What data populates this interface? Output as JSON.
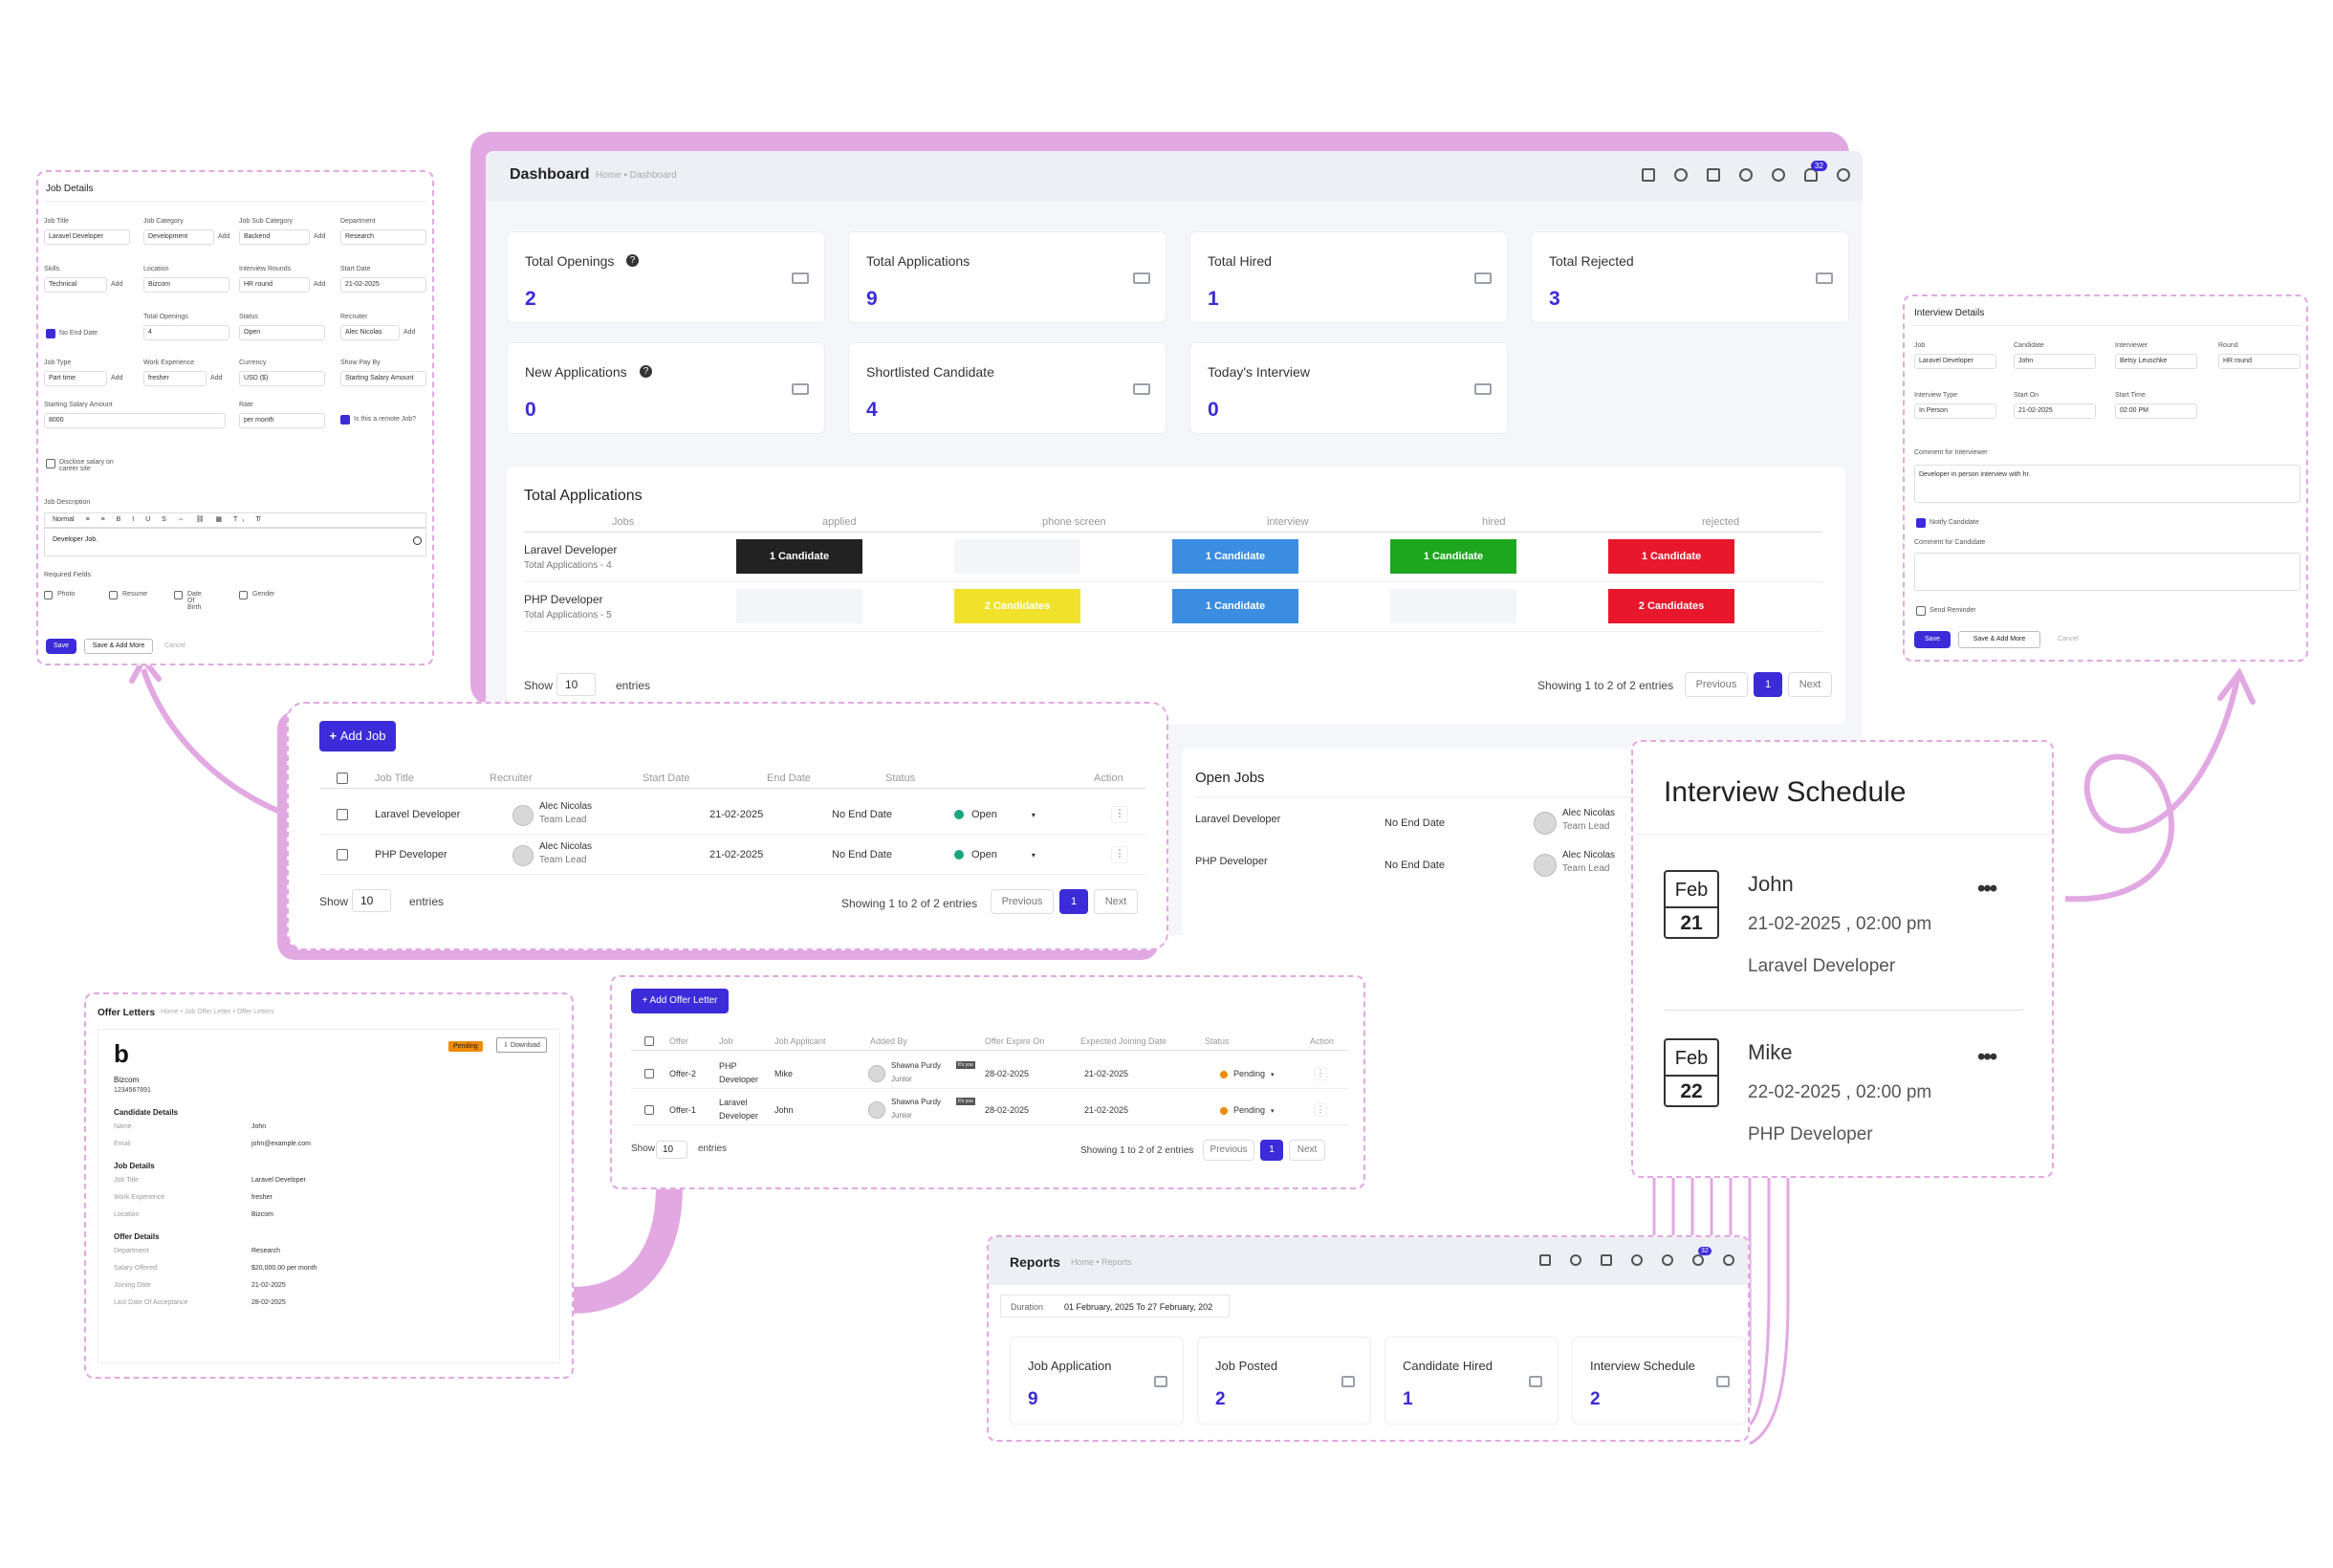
{
  "dashboard": {
    "title": "Dashboard",
    "breadcrumb": "Home • Dashboard",
    "notif_count": "32",
    "stats": [
      {
        "label": "Total Openings",
        "value": "2",
        "help": true
      },
      {
        "label": "Total Applications",
        "value": "9",
        "help": false
      },
      {
        "label": "Total Hired",
        "value": "1",
        "help": false
      },
      {
        "label": "Total Rejected",
        "value": "3",
        "help": false
      },
      {
        "label": "New Applications",
        "value": "0",
        "help": true
      },
      {
        "label": "Shortlisted Candidate",
        "value": "4",
        "help": false
      },
      {
        "label": "Today's Interview",
        "value": "0",
        "help": false
      }
    ],
    "applications": {
      "title": "Total Applications",
      "headers": [
        "Jobs",
        "applied",
        "phone screen",
        "interview",
        "hired",
        "rejected"
      ],
      "rows": [
        {
          "job": "Laravel Developer",
          "sub": "Total Applications - 4",
          "cells": [
            "1 Candidate",
            "",
            "1 Candidate",
            "1 Candidate",
            "1 Candidate"
          ]
        },
        {
          "job": "PHP Developer",
          "sub": "Total Applications - 5",
          "cells": [
            "",
            "2 Candidates",
            "1 Candidate",
            "",
            "2 Candidates"
          ]
        }
      ],
      "show": "Show",
      "entries_val": "10",
      "entries": "entries",
      "showing": "Showing 1 to 2 of 2 entries",
      "prev": "Previous",
      "page": "1",
      "next": "Next"
    }
  },
  "jobs_table": {
    "add_btn": "Add Job",
    "headers": [
      "Job Title",
      "Recruiter",
      "Start Date",
      "End Date",
      "Status",
      "Action"
    ],
    "rows": [
      {
        "title": "Laravel Developer",
        "recruiter": "Alec Nicolas",
        "role": "Team Lead",
        "start": "21-02-2025",
        "end": "No End Date",
        "status": "Open"
      },
      {
        "title": "PHP Developer",
        "recruiter": "Alec Nicolas",
        "role": "Team Lead",
        "start": "21-02-2025",
        "end": "No End Date",
        "status": "Open"
      }
    ],
    "show": "Show",
    "entries_val": "10",
    "entries": "entries",
    "showing": "Showing 1 to 2 of 2 entries",
    "prev": "Previous",
    "page": "1",
    "next": "Next"
  },
  "open_jobs": {
    "title": "Open Jobs",
    "rows": [
      {
        "title": "Laravel Developer",
        "end": "No End Date",
        "recruiter": "Alec Nicolas",
        "role": "Team Lead"
      },
      {
        "title": "PHP Developer",
        "end": "No End Date",
        "recruiter": "Alec Nicolas",
        "role": "Team Lead"
      }
    ]
  },
  "job_details": {
    "title": "Job Details",
    "labels": {
      "job_title": "Job Title",
      "job_category": "Job Category",
      "job_sub_category": "Job Sub Category",
      "department": "Department",
      "skills": "Skills",
      "location": "Location",
      "interview_rounds": "Interview Rounds",
      "start_date": "Start Date",
      "total_openings": "Total Openings",
      "status": "Status",
      "recruiter": "Recruiter",
      "job_type": "Job Type",
      "work_experience": "Work Experience",
      "currency": "Currency",
      "show_pay_by": "Show Pay By",
      "starting_salary": "Starting Salary Amount",
      "rate": "Rate",
      "job_description": "Job Description",
      "required_fields": "Required Fields"
    },
    "values": {
      "job_title": "Laravel Developer",
      "job_category": "Development",
      "job_sub_category": "Backend",
      "department": "Research",
      "skills": "Technical",
      "location": "Bizcom",
      "interview_rounds": "HR round",
      "start_date": "21-02-2025",
      "no_end_date": "No End Date",
      "total_openings": "4",
      "status": "Open",
      "recruiter": "Alec Nicolas",
      "job_type": "Part time",
      "work_experience": "fresher",
      "currency": "USD ($)",
      "show_pay_by": "Starting Salary Amount",
      "starting_salary": "8000",
      "rate": "per month",
      "remote": "Is this a remote Job?",
      "disclose": "Disclose salary on career site",
      "editor_style": "Normal",
      "description": "Developer Job.",
      "add": "Add"
    },
    "required": [
      "Photo",
      "Resume",
      "Date Of Birth",
      "Gender"
    ],
    "save": "Save",
    "save_add": "Save & Add More",
    "cancel": "Cancel"
  },
  "interview_details": {
    "title": "Interview Details",
    "labels": {
      "job": "Job",
      "candidate": "Candidate",
      "interviewer": "Interviewer",
      "round": "Round",
      "type": "Interview Type",
      "start_on": "Start On",
      "start_time": "Start Time",
      "comment_interviewer": "Comment for Interviewer",
      "notify": "Notify Candidate",
      "comment_candidate": "Comment for Candidate",
      "reminder": "Send Reminder"
    },
    "values": {
      "job": "Laravel Developer",
      "candidate": "John",
      "interviewer": "Betsy Leuschke",
      "round": "HR round",
      "type": "In Person",
      "start_on": "21-02-2025",
      "start_time": "02:00 PM",
      "comment": "Developer in person interview with hr."
    },
    "save": "Save",
    "save_add": "Save & Add More",
    "cancel": "Cancel"
  },
  "schedule": {
    "title": "Interview Schedule",
    "items": [
      {
        "month": "Feb",
        "day": "21",
        "name": "John",
        "when": "21-02-2025 , 02:00 pm",
        "job": "Laravel Developer"
      },
      {
        "month": "Feb",
        "day": "22",
        "name": "Mike",
        "when": "22-02-2025 , 02:00 pm",
        "job": "PHP Developer"
      }
    ]
  },
  "offer_letter": {
    "title": "Offer Letters",
    "breadcrumb": "Home • Job Offer Letter • Offer Letters",
    "status": "Pending",
    "download": "Download",
    "company": "Bizcom",
    "phone": "1234567891",
    "sections": [
      {
        "heading": "Candidate Details",
        "rows": [
          [
            "Name",
            "John"
          ],
          [
            "Email",
            "john@example.com"
          ]
        ]
      },
      {
        "heading": "Job Details",
        "rows": [
          [
            "Job Title",
            "Laravel Developer"
          ],
          [
            "Work Experience",
            "fresher"
          ],
          [
            "Location",
            "Bizcom"
          ]
        ]
      },
      {
        "heading": "Offer Details",
        "rows": [
          [
            "Department",
            "Research"
          ],
          [
            "Salary Offered",
            "$20,000.00 per month"
          ],
          [
            "Joining Date",
            "21-02-2025"
          ],
          [
            "Last Date Of Acceptance",
            "28-02-2025"
          ]
        ]
      }
    ]
  },
  "offers_table": {
    "add_btn": "Add Offer Letter",
    "headers": [
      "Offer",
      "Job",
      "Job Applicant",
      "Added By",
      "Offer Expire On",
      "Expected Joining Date",
      "Status",
      "Action"
    ],
    "rows": [
      {
        "offer": "Offer-2",
        "job1": "PHP",
        "job2": "Developer",
        "applicant": "Mike",
        "added": "Shawna Purdy",
        "role": "Junior",
        "badge": "It's you",
        "expire": "28-02-2025",
        "joining": "21-02-2025",
        "status": "Pending"
      },
      {
        "offer": "Offer-1",
        "job1": "Laravel",
        "job2": "Developer",
        "applicant": "John",
        "added": "Shawna Purdy",
        "role": "Junior",
        "badge": "It's you",
        "expire": "28-02-2025",
        "joining": "21-02-2025",
        "status": "Pending"
      }
    ],
    "show": "Show",
    "entries_val": "10",
    "entries": "entries",
    "showing": "Showing 1 to 2 of 2 entries",
    "prev": "Previous",
    "page": "1",
    "next": "Next"
  },
  "reports": {
    "title": "Reports",
    "breadcrumb": "Home • Reports",
    "notif_count": "32",
    "duration_label": "Duration",
    "duration": "01 February, 2025 To 27 February, 202",
    "stats": [
      {
        "label": "Job Application",
        "value": "9"
      },
      {
        "label": "Job Posted",
        "value": "2"
      },
      {
        "label": "Candidate Hired",
        "value": "1"
      },
      {
        "label": "Interview Schedule",
        "value": "2"
      }
    ]
  },
  "colors": {
    "accent": "#3b2bd9",
    "lilac": "#e2a8e2",
    "black": "#222222",
    "yellow": "#f0e22a",
    "blue": "#3a8de0",
    "green": "#1fa61f",
    "red": "#e8172b"
  }
}
